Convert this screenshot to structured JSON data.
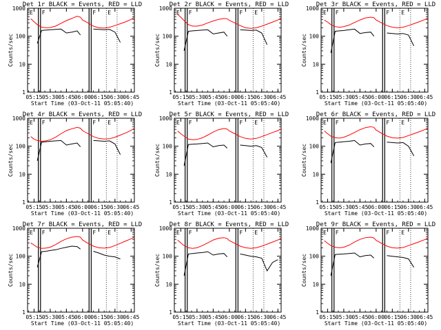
{
  "figure": {
    "start_time_label": "Start Time (03-Oct-11 05:05:40)",
    "y_axis_label": "Counts/sec",
    "x_tick_labels": [
      "05:15",
      "05:30",
      "05:45",
      "06:00",
      "06:15",
      "06:30",
      "06:45"
    ],
    "y_tick_labels": [
      "1",
      "10",
      "100",
      "1000"
    ],
    "flag_letters": [
      "E",
      "F",
      "F",
      "E"
    ],
    "colors": {
      "events": "#000000",
      "lld": "#ff0000",
      "axes": "#000000"
    }
  },
  "chart_data": [
    {
      "type": "line",
      "title": "Det 1r BLACK = Events, RED = LLD",
      "xlabel": "Start Time (03-Oct-11 05:05:40)",
      "ylabel": "Counts/sec",
      "yscale": "log",
      "ylim": [
        1,
        1000
      ],
      "x": [
        "05:12",
        "05:15",
        "05:18",
        "05:22",
        "05:26",
        "05:30",
        "05:35",
        "05:40",
        "05:45",
        "05:50",
        "05:55",
        "05:58",
        "06:00",
        "06:05",
        "06:10",
        "06:15",
        "06:20",
        "06:25",
        "06:30",
        "06:35",
        "06:40",
        "06:45",
        "06:48"
      ],
      "series": [
        {
          "name": "Events",
          "color": "#000000",
          "values": [
            null,
            null,
            55,
            160,
            165,
            170,
            175,
            180,
            130,
            140,
            155,
            110,
            null,
            null,
            180,
            175,
            170,
            175,
            140,
            60,
            null,
            null,
            null
          ]
        },
        {
          "name": "LLD",
          "color": "#ff0000",
          "values": [
            420,
            330,
            260,
            210,
            200,
            205,
            230,
            290,
            360,
            430,
            520,
            480,
            380,
            300,
            230,
            200,
            195,
            210,
            240,
            280,
            330,
            400,
            470
          ]
        }
      ]
    },
    {
      "type": "line",
      "title": "Det 2r BLACK = Events, RED = LLD",
      "xlabel": "Start Time (03-Oct-11 05:05:40)",
      "ylabel": "Counts/sec",
      "yscale": "log",
      "ylim": [
        1,
        1000
      ],
      "x": [
        "05:12",
        "05:15",
        "05:18",
        "05:22",
        "05:26",
        "05:30",
        "05:35",
        "05:40",
        "05:45",
        "05:50",
        "05:55",
        "05:58",
        "06:00",
        "06:05",
        "06:10",
        "06:15",
        "06:20",
        "06:25",
        "06:30",
        "06:35",
        "06:40",
        "06:45",
        "06:48"
      ],
      "series": [
        {
          "name": "Events",
          "color": "#000000",
          "values": [
            null,
            null,
            30,
            150,
            155,
            160,
            165,
            170,
            120,
            130,
            140,
            100,
            null,
            null,
            170,
            165,
            160,
            165,
            130,
            50,
            null,
            null,
            null
          ]
        },
        {
          "name": "LLD",
          "color": "#ff0000",
          "values": [
            600,
            480,
            360,
            260,
            230,
            230,
            250,
            300,
            350,
            400,
            430,
            420,
            370,
            300,
            240,
            200,
            190,
            200,
            230,
            270,
            320,
            380,
            450
          ]
        }
      ]
    },
    {
      "type": "line",
      "title": "Det 3r BLACK = Events, RED = LLD",
      "xlabel": "Start Time (03-Oct-11 05:05:40)",
      "ylabel": "Counts/sec",
      "yscale": "log",
      "ylim": [
        1,
        1000
      ],
      "x": [
        "05:12",
        "05:15",
        "05:18",
        "05:22",
        "05:26",
        "05:30",
        "05:35",
        "05:40",
        "05:45",
        "05:50",
        "05:55",
        "05:58",
        "06:00",
        "06:05",
        "06:10",
        "06:15",
        "06:20",
        "06:25",
        "06:30",
        "06:35",
        "06:40",
        "06:45",
        "06:48"
      ],
      "series": [
        {
          "name": "Events",
          "color": "#000000",
          "values": [
            null,
            null,
            25,
            150,
            155,
            160,
            170,
            180,
            125,
            135,
            140,
            100,
            null,
            null,
            130,
            125,
            120,
            125,
            110,
            45,
            null,
            null,
            null
          ]
        },
        {
          "name": "LLD",
          "color": "#ff0000",
          "values": [
            380,
            320,
            260,
            220,
            210,
            220,
            250,
            310,
            380,
            450,
            480,
            460,
            380,
            300,
            240,
            210,
            200,
            210,
            240,
            280,
            330,
            390,
            450
          ]
        }
      ]
    },
    {
      "type": "line",
      "title": "Det 4r BLACK = Events, RED = LLD",
      "xlabel": "Start Time (03-Oct-11 05:05:40)",
      "ylabel": "Counts/sec",
      "yscale": "log",
      "ylim": [
        1,
        1000
      ],
      "x": [
        "05:12",
        "05:15",
        "05:18",
        "05:22",
        "05:26",
        "05:30",
        "05:35",
        "05:40",
        "05:45",
        "05:50",
        "05:55",
        "05:58",
        "06:00",
        "06:05",
        "06:10",
        "06:15",
        "06:20",
        "06:25",
        "06:30",
        "06:35",
        "06:40",
        "06:45",
        "06:48"
      ],
      "series": [
        {
          "name": "Events",
          "color": "#000000",
          "values": [
            null,
            null,
            30,
            140,
            145,
            150,
            155,
            160,
            110,
            120,
            130,
            95,
            null,
            null,
            160,
            155,
            150,
            155,
            120,
            50,
            null,
            null,
            null
          ]
        },
        {
          "name": "LLD",
          "color": "#ff0000",
          "values": [
            220,
            180,
            160,
            150,
            155,
            170,
            210,
            280,
            360,
            420,
            470,
            440,
            360,
            280,
            220,
            190,
            180,
            185,
            210,
            250,
            300,
            370,
            440
          ]
        }
      ]
    },
    {
      "type": "line",
      "title": "Det 5r BLACK = Events, RED = LLD",
      "xlabel": "Start Time (03-Oct-11 05:05:40)",
      "ylabel": "Counts/sec",
      "yscale": "log",
      "ylim": [
        1,
        1000
      ],
      "x": [
        "05:12",
        "05:15",
        "05:18",
        "05:22",
        "05:26",
        "05:30",
        "05:35",
        "05:40",
        "05:45",
        "05:50",
        "05:55",
        "05:58",
        "06:00",
        "06:05",
        "06:10",
        "06:15",
        "06:20",
        "06:25",
        "06:30",
        "06:35",
        "06:40",
        "06:45",
        "06:48"
      ],
      "series": [
        {
          "name": "Events",
          "color": "#000000",
          "values": [
            null,
            null,
            20,
            115,
            118,
            120,
            125,
            130,
            95,
            105,
            110,
            85,
            null,
            null,
            110,
            105,
            100,
            105,
            90,
            40,
            null,
            null,
            null
          ]
        },
        {
          "name": "LLD",
          "color": "#ff0000",
          "values": [
            350,
            280,
            230,
            180,
            170,
            175,
            200,
            250,
            320,
            390,
            430,
            410,
            350,
            280,
            220,
            190,
            180,
            190,
            220,
            260,
            310,
            360,
            420
          ]
        }
      ]
    },
    {
      "type": "line",
      "title": "Det 6r BLACK = Events, RED = LLD",
      "xlabel": "Start Time (03-Oct-11 05:05:40)",
      "ylabel": "Counts/sec",
      "yscale": "log",
      "ylim": [
        1,
        1000
      ],
      "x": [
        "05:12",
        "05:15",
        "05:18",
        "05:22",
        "05:26",
        "05:30",
        "05:35",
        "05:40",
        "05:45",
        "05:50",
        "05:55",
        "05:58",
        "06:00",
        "06:05",
        "06:10",
        "06:15",
        "06:20",
        "06:25",
        "06:30",
        "06:35",
        "06:40",
        "06:45",
        "06:48"
      ],
      "series": [
        {
          "name": "Events",
          "color": "#000000",
          "values": [
            null,
            null,
            25,
            135,
            140,
            145,
            150,
            160,
            110,
            120,
            125,
            95,
            null,
            null,
            140,
            135,
            130,
            135,
            100,
            45,
            null,
            null,
            null
          ]
        },
        {
          "name": "LLD",
          "color": "#ff0000",
          "values": [
            350,
            280,
            230,
            200,
            195,
            210,
            250,
            310,
            390,
            460,
            500,
            470,
            380,
            290,
            230,
            200,
            195,
            205,
            240,
            280,
            330,
            390,
            450
          ]
        }
      ]
    },
    {
      "type": "line",
      "title": "Det 7r BLACK = Events, RED = LLD",
      "xlabel": "Start Time (03-Oct-11 05:05:40)",
      "ylabel": "Counts/sec",
      "yscale": "log",
      "ylim": [
        1,
        1000
      ],
      "x": [
        "05:12",
        "05:15",
        "05:18",
        "05:22",
        "05:26",
        "05:30",
        "05:35",
        "05:40",
        "05:45",
        "05:50",
        "05:55",
        "05:58",
        "06:00",
        "06:05",
        "06:10",
        "06:15",
        "06:20",
        "06:25",
        "06:30",
        "06:35",
        "06:40",
        "06:45",
        "06:48"
      ],
      "series": [
        {
          "name": "Events",
          "color": "#000000",
          "values": [
            null,
            null,
            40,
            145,
            150,
            160,
            170,
            190,
            210,
            230,
            220,
            180,
            null,
            null,
            150,
            130,
            110,
            100,
            95,
            80,
            null,
            null,
            null
          ]
        },
        {
          "name": "LLD",
          "color": "#ff0000",
          "values": [
            300,
            250,
            210,
            190,
            195,
            210,
            260,
            340,
            420,
            480,
            510,
            480,
            380,
            290,
            230,
            200,
            195,
            205,
            240,
            290,
            350,
            420,
            480
          ]
        }
      ]
    },
    {
      "type": "line",
      "title": "Det 8r BLACK = Events, RED = LLD",
      "xlabel": "Start Time (03-Oct-11 05:05:40)",
      "ylabel": "Counts/sec",
      "yscale": "log",
      "ylim": [
        1,
        1000
      ],
      "x": [
        "05:12",
        "05:15",
        "05:18",
        "05:22",
        "05:26",
        "05:30",
        "05:35",
        "05:40",
        "05:45",
        "05:50",
        "05:55",
        "05:58",
        "06:00",
        "06:05",
        "06:10",
        "06:15",
        "06:20",
        "06:25",
        "06:30",
        "06:35",
        "06:40",
        "06:45",
        "06:48"
      ],
      "series": [
        {
          "name": "Events",
          "color": "#000000",
          "values": [
            null,
            null,
            20,
            120,
            125,
            130,
            135,
            145,
            110,
            120,
            125,
            95,
            null,
            null,
            120,
            110,
            100,
            95,
            85,
            30,
            60,
            75,
            null
          ]
        },
        {
          "name": "LLD",
          "color": "#ff0000",
          "values": [
            380,
            300,
            240,
            200,
            190,
            200,
            240,
            300,
            380,
            440,
            460,
            430,
            360,
            290,
            230,
            200,
            190,
            200,
            230,
            270,
            320,
            380,
            440
          ]
        }
      ]
    },
    {
      "type": "line",
      "title": "Det 9r BLACK = Events, RED = LLD",
      "xlabel": "Start Time (03-Oct-11 05:05:40)",
      "ylabel": "Counts/sec",
      "yscale": "log",
      "ylim": [
        1,
        1000
      ],
      "x": [
        "05:12",
        "05:15",
        "05:18",
        "05:22",
        "05:26",
        "05:30",
        "05:35",
        "05:40",
        "05:45",
        "05:50",
        "05:55",
        "05:58",
        "06:00",
        "06:05",
        "06:10",
        "06:15",
        "06:20",
        "06:25",
        "06:30",
        "06:35",
        "06:40",
        "06:45",
        "06:48"
      ],
      "series": [
        {
          "name": "Events",
          "color": "#000000",
          "values": [
            null,
            null,
            20,
            115,
            118,
            120,
            125,
            130,
            95,
            105,
            110,
            85,
            null,
            null,
            105,
            100,
            95,
            90,
            80,
            40,
            null,
            null,
            null
          ]
        },
        {
          "name": "LLD",
          "color": "#ff0000",
          "values": [
            360,
            290,
            240,
            210,
            200,
            210,
            250,
            320,
            400,
            460,
            480,
            450,
            370,
            290,
            230,
            200,
            195,
            205,
            240,
            280,
            330,
            390,
            450
          ]
        }
      ]
    }
  ]
}
